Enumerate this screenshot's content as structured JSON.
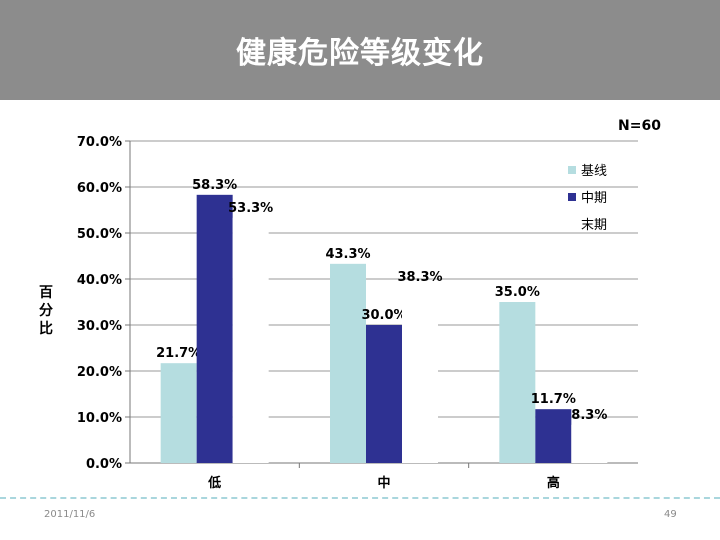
{
  "slide": {
    "title": "健康危险等级变化",
    "sample_size": "N=60",
    "ylabel": "百分比",
    "footer_date": "2011/11/6",
    "page_number": "49"
  },
  "colors": {
    "title_bar": "#8c8c8c",
    "baseline": "#b5dde0",
    "midterm": "#2e3192",
    "final": "#ffffff",
    "footer_rule": "#a9d6dd"
  },
  "chart_data": {
    "type": "bar",
    "categories": [
      "低",
      "中",
      "高"
    ],
    "series": [
      {
        "name": "基线",
        "values": [
          21.7,
          43.3,
          35.0
        ],
        "labels": [
          "21.7%",
          "43.3%",
          "35.0%"
        ]
      },
      {
        "name": "中期",
        "values": [
          58.3,
          30.0,
          11.7
        ],
        "labels": [
          "58.3%",
          "30.0%",
          "11.7%"
        ]
      },
      {
        "name": "末期",
        "values": [
          53.3,
          38.3,
          8.3
        ],
        "labels": [
          "53.3%",
          "38.3%",
          "8.3%"
        ]
      }
    ],
    "ylim": [
      0,
      70
    ],
    "yticks": [
      "0.0%",
      "10.0%",
      "20.0%",
      "30.0%",
      "40.0%",
      "50.0%",
      "60.0%",
      "70.0%"
    ],
    "ylabel": "百分比",
    "grid": true,
    "legend_position": "top-right"
  }
}
